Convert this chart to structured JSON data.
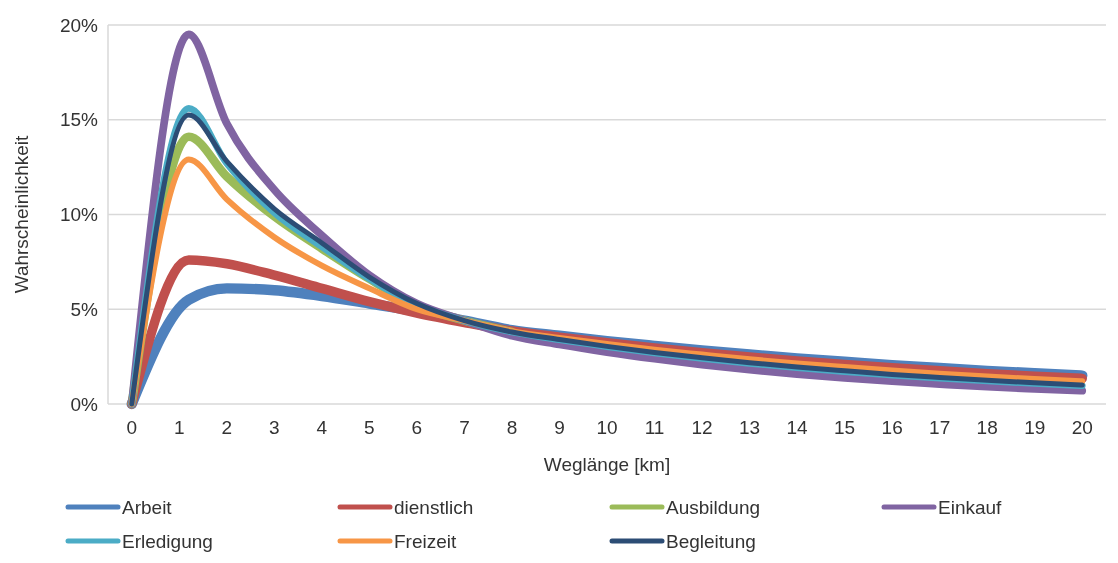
{
  "chart_data": {
    "type": "line",
    "xlabel": "Weglänge [km]",
    "ylabel": "Wahrscheinlichkeit",
    "x": [
      0,
      1.2,
      2,
      3,
      4,
      5,
      6,
      7,
      8,
      9,
      10,
      11,
      12,
      13,
      14,
      15,
      16,
      17,
      18,
      19,
      20
    ],
    "xlim": [
      -0.5,
      20.5
    ],
    "xticks": [
      0,
      1,
      2,
      3,
      4,
      5,
      6,
      7,
      8,
      9,
      10,
      11,
      12,
      13,
      14,
      15,
      16,
      17,
      18,
      19,
      20
    ],
    "ylim": [
      0,
      20
    ],
    "yticks": [
      {
        "value": 0,
        "label": "0%"
      },
      {
        "value": 5,
        "label": "5%"
      },
      {
        "value": 10,
        "label": "10%"
      },
      {
        "value": 15,
        "label": "15%"
      },
      {
        "value": 20,
        "label": "20%"
      }
    ],
    "grid": "y",
    "legend": "bottom",
    "marker": "none",
    "line_style": "solid",
    "series": [
      {
        "name": "Arbeit",
        "color": "#4f81bd",
        "values": [
          0,
          5.5,
          6.1,
          6.0,
          5.7,
          5.3,
          4.9,
          4.4,
          3.9,
          3.6,
          3.32,
          3.07,
          2.83,
          2.61,
          2.41,
          2.23,
          2.05,
          1.9,
          1.75,
          1.62,
          1.5
        ]
      },
      {
        "name": "dienstlich",
        "color": "#c0504d",
        "values": [
          0,
          7.6,
          7.4,
          6.8,
          6.1,
          5.4,
          4.8,
          4.3,
          3.85,
          3.53,
          3.23,
          2.96,
          2.71,
          2.48,
          2.27,
          2.08,
          1.91,
          1.75,
          1.6,
          1.47,
          1.35
        ]
      },
      {
        "name": "Ausbildung",
        "color": "#9bbb59",
        "values": [
          0,
          14.1,
          12.0,
          9.9,
          8.2,
          6.6,
          5.2,
          4.4,
          3.8,
          null,
          null,
          null,
          null,
          null,
          null,
          null,
          null,
          null,
          null,
          null,
          null
        ]
      },
      {
        "name": "Einkauf",
        "color": "#8064a2",
        "values": [
          0,
          19.5,
          14.8,
          11.3,
          8.9,
          6.8,
          5.3,
          4.4,
          3.6,
          3.14,
          2.74,
          2.39,
          2.08,
          1.81,
          1.58,
          1.38,
          1.2,
          1.05,
          0.91,
          0.8,
          0.7
        ]
      },
      {
        "name": "Erledigung",
        "color": "#4bacc6",
        "values": [
          0,
          15.6,
          12.7,
          10.1,
          8.3,
          6.6,
          5.2,
          4.4,
          3.8,
          3.39,
          3.03,
          2.7,
          2.41,
          2.15,
          1.92,
          1.71,
          1.53,
          1.36,
          1.22,
          1.09,
          0.97
        ]
      },
      {
        "name": "Freizeit",
        "color": "#f79646",
        "values": [
          0,
          12.9,
          10.8,
          8.8,
          7.3,
          6.1,
          5.0,
          4.4,
          3.85,
          3.49,
          3.17,
          2.87,
          2.61,
          2.36,
          2.14,
          1.95,
          1.77,
          1.6,
          1.45,
          1.32,
          1.2
        ]
      },
      {
        "name": "Begleitung",
        "color": "#2c4d75",
        "values": [
          0,
          15.25,
          12.8,
          10.3,
          8.5,
          6.7,
          5.3,
          4.4,
          3.8,
          3.4,
          3.04,
          2.72,
          2.44,
          2.18,
          1.95,
          1.75,
          1.56,
          1.4,
          1.25,
          1.12,
          1.0
        ]
      }
    ]
  }
}
